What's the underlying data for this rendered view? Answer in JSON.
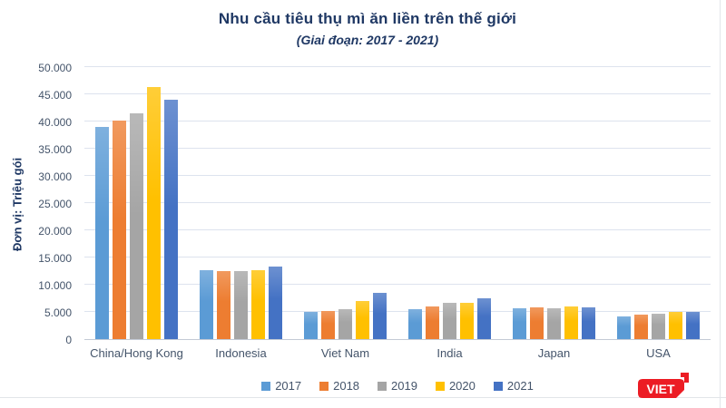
{
  "header": {
    "title": "Nhu cầu tiêu thụ mì ăn liền trên thế giới",
    "subtitle": "(Giai đoạn: 2017 - 2021)"
  },
  "palette": {
    "title_text": "#1F3864",
    "axis_text": "#44546A",
    "gridline": "#DDE3EE",
    "axis_line": "#C3CAD5",
    "frame_line": "#E2E5E9",
    "logo_red": "#EC1C24"
  },
  "logo": {
    "text": "VIET",
    "color": "#EC1C24"
  },
  "chart_data": {
    "type": "bar",
    "title": "Nhu cầu tiêu thụ mì ăn liền trên thế giới",
    "subtitle": "(Giai đoạn: 2017 - 2021)",
    "ylabel": "Đơn vị: Triệu gói",
    "xlabel": "",
    "categories": [
      "China/Hong Kong",
      "Indonesia",
      "Viet Nam",
      "India",
      "Japan",
      "USA"
    ],
    "series": [
      {
        "name": "2017",
        "color": "#5B9BD5",
        "values": [
          38970,
          12620,
          5060,
          5420,
          5660,
          4130
        ]
      },
      {
        "name": "2018",
        "color": "#ED7D31",
        "values": [
          40250,
          12540,
          5200,
          6060,
          5780,
          4520
        ]
      },
      {
        "name": "2019",
        "color": "#A5A5A5",
        "values": [
          41450,
          12520,
          5430,
          6730,
          5630,
          4630
        ]
      },
      {
        "name": "2020",
        "color": "#FFC000",
        "values": [
          46360,
          12640,
          7030,
          6730,
          5970,
          5050
        ]
      },
      {
        "name": "2021",
        "color": "#4472C4",
        "values": [
          43990,
          13270,
          8560,
          7560,
          5850,
          4980
        ]
      }
    ],
    "ylim": [
      0,
      50000
    ],
    "ytick_step": 5000,
    "ytick_labels": [
      "0",
      "5.000",
      "10.000",
      "15.000",
      "20.000",
      "25.000",
      "30.000",
      "35.000",
      "40.000",
      "45.000",
      "50.000"
    ],
    "grid": true,
    "legend_position": "bottom"
  }
}
